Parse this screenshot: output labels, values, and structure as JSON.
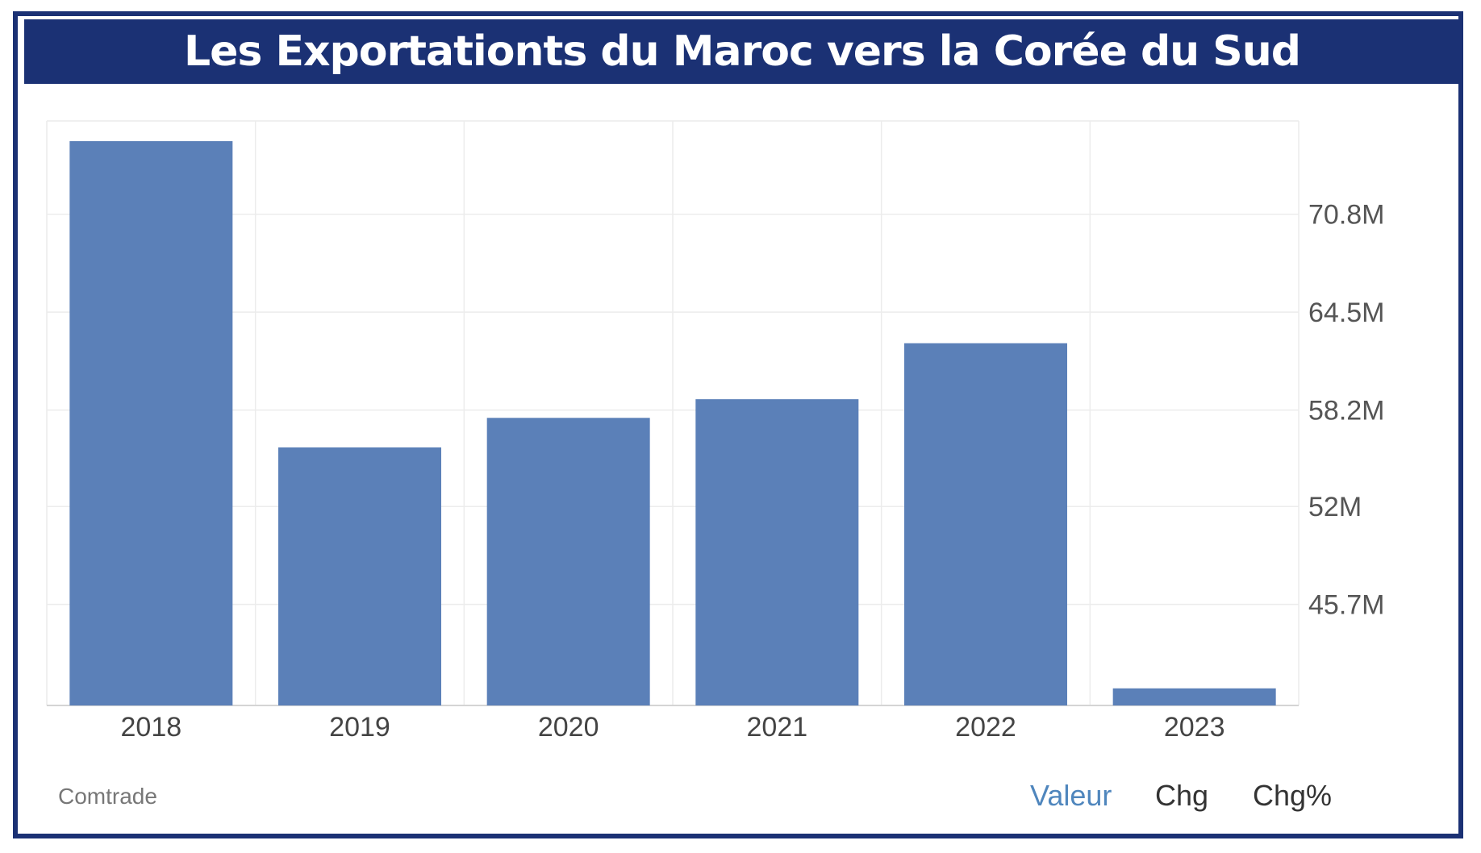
{
  "header": {
    "title": "Les Exportationts du Maroc vers la Corée du Sud"
  },
  "footer": {
    "source": "Comtrade",
    "tabs": [
      {
        "label": "Valeur",
        "active": true
      },
      {
        "label": "Chg",
        "active": false
      },
      {
        "label": "Chg%",
        "active": false
      }
    ]
  },
  "colors": {
    "frame": "#1b3174",
    "bar": "#5b80b8",
    "active_tab": "#4f86bd"
  },
  "chart_data": {
    "type": "bar",
    "title": "Les Exportationts du Maroc vers la Corée du Sud",
    "xlabel": "",
    "ylabel": "",
    "categories": [
      "2018",
      "2019",
      "2020",
      "2021",
      "2022",
      "2023"
    ],
    "values": [
      75.5,
      55.8,
      57.7,
      58.9,
      62.5,
      40.3
    ],
    "ylim": [
      39.2,
      76.8
    ],
    "yticks": [
      45.7,
      52,
      58.2,
      64.5,
      70.8
    ],
    "ytick_labels": [
      "45.7M",
      "52M",
      "58.2M",
      "64.5M",
      "70.8M"
    ],
    "y_axis_position": "right",
    "grid": true,
    "legend": "none"
  }
}
